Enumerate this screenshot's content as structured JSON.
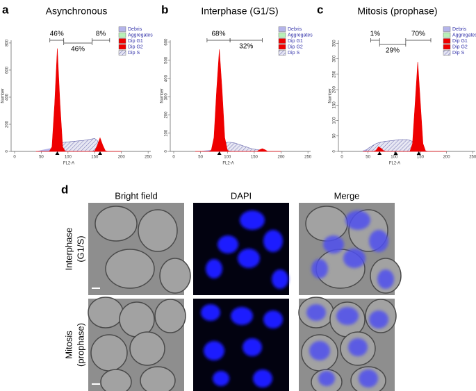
{
  "chart_data": [
    {
      "type": "area",
      "panel": "a",
      "title": "Asynchronous",
      "xlabel": "FL2-A",
      "ylabel": "Number",
      "x": [
        40,
        45,
        50,
        55,
        60,
        65,
        70,
        75,
        80,
        85,
        90,
        95,
        100,
        105,
        110,
        115,
        120,
        125,
        130,
        135,
        140,
        145,
        150,
        155,
        160,
        165,
        170,
        175,
        180,
        185,
        190,
        195,
        200
      ],
      "xlim": [
        0,
        255
      ],
      "xticks": [
        0,
        50,
        100,
        150,
        200,
        250
      ],
      "ylim": [
        0,
        820
      ],
      "yticks": [
        0,
        200,
        400,
        600,
        800
      ],
      "series": [
        {
          "name": "Debris",
          "color": "#b4b4ea",
          "values": [
            0,
            3,
            8,
            12,
            16,
            20,
            22,
            18,
            12,
            6,
            2,
            0,
            0,
            0,
            0,
            0,
            0,
            0,
            0,
            0,
            0,
            0,
            0,
            0,
            0,
            0,
            0,
            0,
            0,
            0,
            0,
            0,
            0
          ]
        },
        {
          "name": "Aggregates",
          "color": "#b8f0b8",
          "values": [
            0,
            0,
            0,
            0,
            0,
            0,
            0,
            0,
            0,
            0,
            0,
            0,
            0,
            0,
            0,
            0,
            0,
            0,
            0,
            0,
            0,
            0,
            0,
            0,
            0,
            0,
            0,
            0,
            0,
            0,
            0,
            0,
            0
          ]
        },
        {
          "name": "Dip S",
          "color": "#7070b0",
          "hatch": true,
          "values": [
            0,
            0,
            0,
            0,
            0,
            0,
            0,
            0,
            30,
            60,
            65,
            68,
            70,
            72,
            74,
            76,
            78,
            80,
            82,
            85,
            88,
            92,
            95,
            80,
            40,
            10,
            0,
            0,
            0,
            0,
            0,
            0,
            0
          ]
        },
        {
          "name": "Dip G1",
          "color": "#ee0000",
          "values": [
            0,
            0,
            0,
            0,
            0,
            0,
            33,
            350,
            760,
            350,
            33,
            0,
            0,
            0,
            0,
            0,
            0,
            0,
            0,
            0,
            0,
            0,
            0,
            0,
            0,
            0,
            0,
            0,
            0,
            0,
            0,
            0,
            0
          ]
        },
        {
          "name": "Dip G2",
          "color": "#ee0000",
          "values": [
            0,
            0,
            0,
            0,
            0,
            0,
            0,
            0,
            0,
            0,
            0,
            0,
            0,
            0,
            0,
            0,
            0,
            0,
            0,
            0,
            0,
            0,
            4,
            46,
            100,
            46,
            4,
            0,
            0,
            0,
            0,
            0,
            0
          ]
        }
      ],
      "peak_markers": [
        80,
        160
      ],
      "annotations": [
        "46%",
        "46%",
        "8%"
      ]
    },
    {
      "type": "area",
      "panel": "b",
      "title": "Interphase (G1/S)",
      "xlabel": "FL2-A",
      "ylabel": "Number",
      "x": [
        40,
        45,
        50,
        55,
        60,
        65,
        70,
        75,
        80,
        85,
        90,
        95,
        100,
        105,
        110,
        115,
        120,
        125,
        130,
        135,
        140,
        145,
        150,
        155,
        160,
        165,
        170,
        175,
        180,
        185,
        190,
        195,
        200
      ],
      "xlim": [
        0,
        255
      ],
      "xticks": [
        0,
        50,
        100,
        150,
        200,
        250
      ],
      "ylim": [
        0,
        610
      ],
      "yticks": [
        0,
        100,
        200,
        300,
        400,
        500,
        600
      ],
      "series": [
        {
          "name": "Debris",
          "color": "#b4b4ea",
          "values": [
            0,
            0,
            0,
            2,
            4,
            6,
            8,
            6,
            4,
            2,
            0,
            0,
            0,
            0,
            0,
            0,
            0,
            0,
            0,
            0,
            0,
            0,
            0,
            0,
            0,
            0,
            0,
            0,
            0,
            0,
            0,
            0,
            0
          ]
        },
        {
          "name": "Aggregates",
          "color": "#b8f0b8",
          "values": [
            0,
            0,
            0,
            0,
            0,
            0,
            0,
            0,
            0,
            0,
            0,
            0,
            0,
            0,
            0,
            0,
            0,
            0,
            0,
            0,
            0,
            0,
            0,
            0,
            0,
            0,
            0,
            0,
            0,
            0,
            0,
            0,
            0
          ]
        },
        {
          "name": "Dip S",
          "color": "#7070b0",
          "hatch": true,
          "values": [
            0,
            0,
            0,
            0,
            0,
            0,
            0,
            0,
            0,
            10,
            30,
            45,
            50,
            50,
            48,
            45,
            40,
            35,
            30,
            25,
            20,
            15,
            12,
            10,
            8,
            5,
            2,
            0,
            0,
            0,
            0,
            0,
            0
          ]
        },
        {
          "name": "Dip G1",
          "color": "#ee0000",
          "values": [
            0,
            0,
            0,
            0,
            0,
            0,
            6,
            76,
            340,
            560,
            340,
            76,
            6,
            0,
            0,
            0,
            0,
            0,
            0,
            0,
            0,
            0,
            0,
            0,
            0,
            0,
            0,
            0,
            0,
            0,
            0,
            0,
            0
          ]
        },
        {
          "name": "Dip G2",
          "color": "#ee0000",
          "values": [
            0,
            0,
            0,
            0,
            0,
            0,
            0,
            0,
            0,
            0,
            0,
            0,
            0,
            0,
            0,
            0,
            0,
            0,
            0,
            0,
            0,
            0,
            0,
            0,
            9,
            15,
            9,
            0,
            0,
            0,
            0,
            0,
            0
          ]
        }
      ],
      "peak_markers": [
        85
      ],
      "annotations": [
        "68%",
        "32%"
      ]
    },
    {
      "type": "area",
      "panel": "c",
      "title": "Mitosis (prophase)",
      "xlabel": "FL2-A",
      "ylabel": "Number",
      "x": [
        40,
        45,
        50,
        55,
        60,
        65,
        70,
        75,
        80,
        85,
        90,
        95,
        100,
        105,
        110,
        115,
        120,
        125,
        130,
        135,
        140,
        145,
        150,
        155,
        160,
        165,
        170,
        175,
        180,
        185,
        190,
        195,
        200
      ],
      "xlim": [
        0,
        255
      ],
      "xticks": [
        0,
        50,
        100,
        150,
        200,
        250
      ],
      "ylim": [
        0,
        360
      ],
      "yticks": [
        0,
        50,
        100,
        150,
        200,
        250,
        300,
        350
      ],
      "series": [
        {
          "name": "Debris",
          "color": "#b4b4ea",
          "values": [
            2,
            5,
            8,
            10,
            8,
            5,
            2,
            0,
            0,
            0,
            0,
            0,
            0,
            0,
            0,
            0,
            0,
            0,
            0,
            0,
            0,
            0,
            0,
            0,
            0,
            0,
            0,
            0,
            0,
            0,
            0,
            0,
            0
          ]
        },
        {
          "name": "Aggregates",
          "color": "#b8f0b8",
          "values": [
            0,
            0,
            0,
            0,
            0,
            0,
            0,
            0,
            0,
            0,
            0,
            0,
            0,
            0,
            0,
            0,
            0,
            0,
            0,
            0,
            0,
            0,
            0,
            0,
            0,
            0,
            0,
            0,
            0,
            0,
            0,
            0,
            0
          ]
        },
        {
          "name": "Dip S",
          "color": "#7070b0",
          "hatch": true,
          "values": [
            0,
            0,
            10,
            15,
            20,
            25,
            28,
            30,
            32,
            33,
            34,
            35,
            36,
            37,
            38,
            38,
            38,
            38,
            36,
            32,
            25,
            18,
            10,
            5,
            2,
            0,
            0,
            0,
            0,
            0,
            0,
            0,
            0
          ]
        },
        {
          "name": "Dip G1",
          "color": "#ee0000",
          "values": [
            0,
            0,
            0,
            0,
            0,
            3,
            15,
            10,
            2,
            0,
            0,
            0,
            0,
            0,
            0,
            0,
            0,
            0,
            0,
            0,
            0,
            0,
            0,
            0,
            0,
            0,
            0,
            0,
            0,
            0,
            0,
            0,
            0
          ]
        },
        {
          "name": "Dip G2",
          "color": "#ee0000",
          "values": [
            0,
            0,
            0,
            0,
            0,
            0,
            0,
            0,
            0,
            0,
            0,
            0,
            0,
            0,
            0,
            0,
            0,
            0,
            0,
            25,
            157,
            290,
            157,
            25,
            1,
            0,
            0,
            0,
            0,
            0,
            0,
            0,
            0
          ]
        }
      ],
      "peak_markers": [
        72,
        103,
        147
      ],
      "annotations": [
        "1%",
        "29%",
        "70%"
      ]
    }
  ],
  "panel_d": {
    "label": "d",
    "columns": [
      "Bright field",
      "DAPI",
      "Merge"
    ],
    "rows": [
      [
        "Interphase",
        "(G1/S)"
      ],
      [
        "Mitosis",
        "(prophase)"
      ]
    ]
  }
}
